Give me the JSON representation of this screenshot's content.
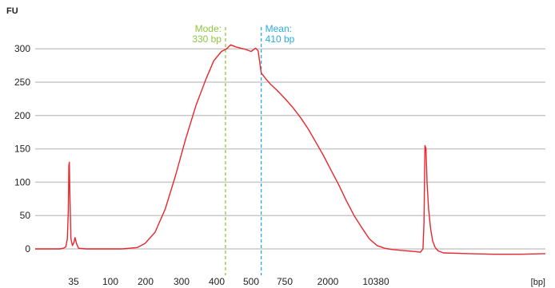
{
  "chart_data": {
    "type": "line",
    "title": "",
    "ylabel": "FU",
    "xlabel": "[bp]",
    "ylim": [
      -30,
      330
    ],
    "yticks": [
      0,
      50,
      100,
      150,
      200,
      250,
      300
    ],
    "grid": true,
    "x_ticks": [
      "35",
      "100",
      "200",
      "300",
      "400",
      "500",
      "750",
      "2000",
      "10380"
    ],
    "series": [
      {
        "color": "#e8262c",
        "points": [
          [
            0.0,
            0
          ],
          [
            0.048,
            0
          ],
          [
            0.055,
            1
          ],
          [
            0.06,
            3
          ],
          [
            0.063,
            15
          ],
          [
            0.065,
            60
          ],
          [
            0.066,
            125
          ],
          [
            0.067,
            130
          ],
          [
            0.068,
            80
          ],
          [
            0.07,
            15
          ],
          [
            0.073,
            5
          ],
          [
            0.076,
            10
          ],
          [
            0.078,
            17
          ],
          [
            0.081,
            8
          ],
          [
            0.085,
            1
          ],
          [
            0.1,
            0
          ],
          [
            0.17,
            0
          ],
          [
            0.2,
            2
          ],
          [
            0.215,
            8
          ],
          [
            0.235,
            25
          ],
          [
            0.255,
            60
          ],
          [
            0.275,
            110
          ],
          [
            0.295,
            165
          ],
          [
            0.315,
            215
          ],
          [
            0.335,
            255
          ],
          [
            0.35,
            282
          ],
          [
            0.365,
            296
          ],
          [
            0.375,
            300
          ],
          [
            0.383,
            306
          ],
          [
            0.393,
            303
          ],
          [
            0.403,
            301
          ],
          [
            0.413,
            299
          ],
          [
            0.423,
            296
          ],
          [
            0.432,
            301
          ],
          [
            0.437,
            297
          ],
          [
            0.443,
            264
          ],
          [
            0.452,
            255
          ],
          [
            0.46,
            248
          ],
          [
            0.475,
            237
          ],
          [
            0.49,
            225
          ],
          [
            0.505,
            212
          ],
          [
            0.52,
            197
          ],
          [
            0.535,
            180
          ],
          [
            0.55,
            160
          ],
          [
            0.565,
            140
          ],
          [
            0.58,
            118
          ],
          [
            0.595,
            96
          ],
          [
            0.61,
            72
          ],
          [
            0.625,
            50
          ],
          [
            0.64,
            32
          ],
          [
            0.655,
            15
          ],
          [
            0.67,
            5
          ],
          [
            0.685,
            1
          ],
          [
            0.7,
            -1
          ],
          [
            0.73,
            -3
          ],
          [
            0.745,
            -4
          ],
          [
            0.755,
            -5
          ],
          [
            0.76,
            0
          ],
          [
            0.762,
            40
          ],
          [
            0.763,
            100
          ],
          [
            0.764,
            155
          ],
          [
            0.766,
            150
          ],
          [
            0.768,
            100
          ],
          [
            0.771,
            60
          ],
          [
            0.775,
            30
          ],
          [
            0.779,
            12
          ],
          [
            0.784,
            2
          ],
          [
            0.79,
            -3
          ],
          [
            0.8,
            -6
          ],
          [
            0.85,
            -7
          ],
          [
            0.9,
            -8
          ],
          [
            0.95,
            -8
          ],
          [
            1.0,
            -7
          ]
        ]
      }
    ],
    "annotations": [
      {
        "label": "Mode:",
        "value": "330 bp",
        "color": "#8dc63f",
        "at": 0.373
      },
      {
        "label": "Mean:",
        "value": "410 bp",
        "color": "#29abe2",
        "at": 0.443
      }
    ]
  }
}
